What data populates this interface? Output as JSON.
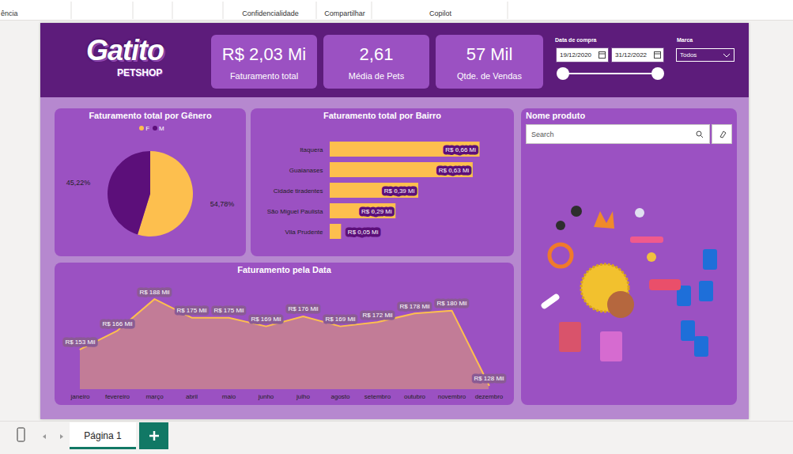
{
  "toolbar": [
    "ência",
    "Confidencialidade",
    "Compartilhar",
    "Copilot"
  ],
  "header": {
    "logo": [
      "Gatito",
      "PETSHOP"
    ]
  },
  "cards": [
    {
      "value": "R$ 2,03 Mi",
      "label": "Faturamento total"
    },
    {
      "value": "2,61",
      "label": "Média de Pets"
    },
    {
      "value": "57 Mil",
      "label": "Qtde. de Vendas"
    }
  ],
  "filters": {
    "date": {
      "label": "Data de compra",
      "start": "19/12/2020",
      "end": "31/12/2022"
    },
    "brand": {
      "label": "Marca",
      "value": "Todos"
    }
  },
  "product_slicer": {
    "title": "Nome produto",
    "placeholder": "Search"
  },
  "tabs": [
    "Página 1"
  ],
  "chart_data": [
    {
      "type": "pie",
      "title": "Faturamento total por Gênero",
      "categories": [
        "F",
        "M"
      ],
      "values": [
        54.78,
        45.22
      ],
      "value_labels": [
        "54,78%",
        "45,22%"
      ],
      "colors": [
        "#fdbf4e",
        "#5c0f7a"
      ],
      "legend": "top",
      "data_labels": true
    },
    {
      "type": "bar",
      "title": "Faturamento total por Bairro",
      "orientation": "horizontal",
      "categories": [
        "Itaquera",
        "Guaianases",
        "Cidade tiradentes",
        "São Miguel Paulista",
        "Vila Prudente"
      ],
      "values": [
        0.66,
        0.63,
        0.39,
        0.29,
        0.05
      ],
      "value_labels": [
        "R$ 0,66 Mi",
        "R$ 0,63 Mi",
        "R$ 0,39 Mi",
        "R$ 0,29 Mi",
        "R$ 0,05 Mi"
      ],
      "color": "#fdbf4e",
      "xlim": [
        0,
        0.7
      ],
      "data_labels": true,
      "tick_labels": "y"
    },
    {
      "type": "area",
      "title": "Faturamento pela Data",
      "categories": [
        "janeiro",
        "fevereiro",
        "março",
        "abril",
        "maio",
        "junho",
        "julho",
        "agosto",
        "setembro",
        "outubro",
        "novembro",
        "dezembro"
      ],
      "values": [
        153,
        166,
        188,
        175,
        175,
        169,
        176,
        169,
        172,
        178,
        180,
        128
      ],
      "value_labels": [
        "R$ 153 Mil",
        "R$ 166 Mil",
        "R$ 188 Mil",
        "R$ 175 Mil",
        "R$ 175 Mil",
        "R$ 169 Mil",
        "R$ 176 Mil",
        "R$ 169 Mil",
        "R$ 172 Mil",
        "R$ 178 Mil",
        "R$ 180 Mil",
        "R$ 128 Mil"
      ],
      "color": "#fdbf4e",
      "ylim": [
        125,
        190
      ],
      "data_labels": true,
      "tick_labels": "x"
    }
  ]
}
